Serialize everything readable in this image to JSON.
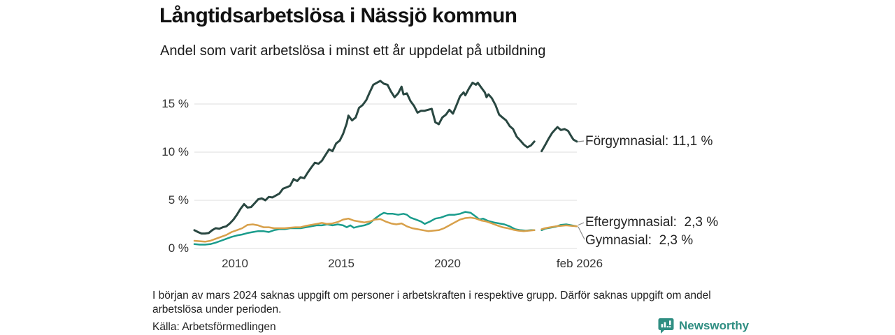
{
  "header": {
    "title": "Långtidsarbetslösa i Nässjö kommun",
    "subtitle": "Andel som varit arbetslösa i minst ett år uppdelat på utbildning"
  },
  "chart_data": {
    "type": "line",
    "title": "Långtidsarbetslösa i Nässjö kommun",
    "subtitle": "Andel som varit arbetslösa i minst ett år uppdelat på utbildning",
    "x_axis": {
      "range": [
        2008.08,
        2026.08
      ],
      "ticks": [
        {
          "label": "2010",
          "value": 2010
        },
        {
          "label": "2015",
          "value": 2015
        },
        {
          "label": "2020",
          "value": 2020
        },
        {
          "label": "feb 2026",
          "value": 2026.08
        }
      ]
    },
    "y_axis": {
      "unit": "%",
      "range": [
        0,
        18.5
      ],
      "grid": true,
      "ticks": [
        {
          "label": "0 %",
          "value": 0
        },
        {
          "label": "5 %",
          "value": 5
        },
        {
          "label": "10 %",
          "value": 10
        },
        {
          "label": "15 %",
          "value": 15
        }
      ]
    },
    "data_gap": {
      "from": 2024.17,
      "to": 2024.33,
      "reason": "mars 2024: uppgift saknas"
    },
    "series": [
      {
        "name": "Förgymnasial",
        "latest_value": "11,1 %",
        "label": "Förgymnasial: 11,1 %",
        "color": "#294741",
        "stroke_width": 3,
        "points": [
          [
            2008.08,
            1.9
          ],
          [
            2008.25,
            1.7
          ],
          [
            2008.42,
            1.55
          ],
          [
            2008.58,
            1.55
          ],
          [
            2008.75,
            1.6
          ],
          [
            2008.92,
            1.9
          ],
          [
            2009.08,
            2.1
          ],
          [
            2009.25,
            2.05
          ],
          [
            2009.42,
            2.2
          ],
          [
            2009.58,
            2.3
          ],
          [
            2009.75,
            2.6
          ],
          [
            2009.92,
            3.0
          ],
          [
            2010.08,
            3.5
          ],
          [
            2010.25,
            4.1
          ],
          [
            2010.42,
            4.6
          ],
          [
            2010.58,
            4.25
          ],
          [
            2010.75,
            4.3
          ],
          [
            2010.92,
            4.7
          ],
          [
            2011.08,
            5.1
          ],
          [
            2011.25,
            5.2
          ],
          [
            2011.42,
            5.0
          ],
          [
            2011.58,
            5.35
          ],
          [
            2011.75,
            5.3
          ],
          [
            2011.92,
            5.5
          ],
          [
            2012.08,
            5.7
          ],
          [
            2012.25,
            6.2
          ],
          [
            2012.42,
            6.35
          ],
          [
            2012.58,
            6.5
          ],
          [
            2012.75,
            7.2
          ],
          [
            2012.92,
            7.0
          ],
          [
            2013.08,
            7.4
          ],
          [
            2013.25,
            7.3
          ],
          [
            2013.42,
            7.9
          ],
          [
            2013.58,
            8.4
          ],
          [
            2013.75,
            8.9
          ],
          [
            2013.92,
            8.8
          ],
          [
            2014.08,
            9.1
          ],
          [
            2014.25,
            9.7
          ],
          [
            2014.42,
            10.3
          ],
          [
            2014.58,
            10.1
          ],
          [
            2014.75,
            10.9
          ],
          [
            2014.92,
            11.2
          ],
          [
            2015.08,
            11.9
          ],
          [
            2015.25,
            13.0
          ],
          [
            2015.33,
            13.8
          ],
          [
            2015.5,
            13.3
          ],
          [
            2015.67,
            13.6
          ],
          [
            2015.83,
            14.6
          ],
          [
            2016.0,
            14.9
          ],
          [
            2016.17,
            15.4
          ],
          [
            2016.33,
            16.2
          ],
          [
            2016.5,
            17.0
          ],
          [
            2016.67,
            17.2
          ],
          [
            2016.83,
            17.4
          ],
          [
            2017.0,
            17.1
          ],
          [
            2017.17,
            17.0
          ],
          [
            2017.33,
            16.3
          ],
          [
            2017.5,
            15.7
          ],
          [
            2017.67,
            16.1
          ],
          [
            2017.83,
            16.8
          ],
          [
            2017.92,
            16.0
          ],
          [
            2018.08,
            16.1
          ],
          [
            2018.25,
            15.3
          ],
          [
            2018.42,
            14.8
          ],
          [
            2018.58,
            14.1
          ],
          [
            2018.75,
            14.3
          ],
          [
            2018.92,
            14.3
          ],
          [
            2019.08,
            14.4
          ],
          [
            2019.25,
            14.5
          ],
          [
            2019.42,
            13.1
          ],
          [
            2019.58,
            12.9
          ],
          [
            2019.75,
            13.6
          ],
          [
            2019.92,
            13.9
          ],
          [
            2020.08,
            14.4
          ],
          [
            2020.25,
            14.0
          ],
          [
            2020.42,
            14.9
          ],
          [
            2020.58,
            15.8
          ],
          [
            2020.75,
            16.2
          ],
          [
            2020.83,
            15.9
          ],
          [
            2021.0,
            16.6
          ],
          [
            2021.17,
            17.2
          ],
          [
            2021.33,
            17.0
          ],
          [
            2021.42,
            17.2
          ],
          [
            2021.58,
            16.7
          ],
          [
            2021.75,
            16.2
          ],
          [
            2021.83,
            15.7
          ],
          [
            2021.92,
            16.0
          ],
          [
            2022.08,
            15.6
          ],
          [
            2022.25,
            14.9
          ],
          [
            2022.42,
            13.9
          ],
          [
            2022.58,
            13.6
          ],
          [
            2022.75,
            13.3
          ],
          [
            2022.92,
            12.7
          ],
          [
            2023.08,
            12.4
          ],
          [
            2023.25,
            11.6
          ],
          [
            2023.42,
            11.2
          ],
          [
            2023.58,
            10.8
          ],
          [
            2023.75,
            10.5
          ],
          [
            2023.92,
            10.7
          ],
          [
            2024.08,
            11.1
          ],
          null,
          [
            2024.42,
            10.1
          ],
          [
            2024.58,
            10.7
          ],
          [
            2024.75,
            11.4
          ],
          [
            2024.92,
            12.0
          ],
          [
            2025.08,
            12.4
          ],
          [
            2025.17,
            12.6
          ],
          [
            2025.33,
            12.3
          ],
          [
            2025.5,
            12.4
          ],
          [
            2025.67,
            12.2
          ],
          [
            2025.83,
            11.6
          ],
          [
            2025.92,
            11.3
          ],
          [
            2026.08,
            11.1
          ]
        ]
      },
      {
        "name": "Eftergymnasial",
        "latest_value": "2,3 %",
        "label": "Eftergymnasial:  2,3 %",
        "color": "#1a9c8c",
        "stroke_width": 2.5,
        "points": [
          [
            2008.08,
            0.45
          ],
          [
            2008.33,
            0.4
          ],
          [
            2008.58,
            0.4
          ],
          [
            2008.83,
            0.45
          ],
          [
            2009.08,
            0.6
          ],
          [
            2009.33,
            0.8
          ],
          [
            2009.58,
            1.0
          ],
          [
            2009.83,
            1.2
          ],
          [
            2010.08,
            1.35
          ],
          [
            2010.33,
            1.45
          ],
          [
            2010.58,
            1.6
          ],
          [
            2010.83,
            1.7
          ],
          [
            2011.08,
            1.8
          ],
          [
            2011.33,
            1.8
          ],
          [
            2011.58,
            1.7
          ],
          [
            2011.83,
            1.9
          ],
          [
            2012.08,
            2.0
          ],
          [
            2012.33,
            2.0
          ],
          [
            2012.58,
            2.1
          ],
          [
            2012.83,
            2.1
          ],
          [
            2013.08,
            2.1
          ],
          [
            2013.33,
            2.2
          ],
          [
            2013.58,
            2.3
          ],
          [
            2013.83,
            2.4
          ],
          [
            2014.08,
            2.4
          ],
          [
            2014.33,
            2.5
          ],
          [
            2014.58,
            2.4
          ],
          [
            2014.83,
            2.5
          ],
          [
            2015.08,
            2.4
          ],
          [
            2015.25,
            2.2
          ],
          [
            2015.42,
            2.4
          ],
          [
            2015.58,
            2.15
          ],
          [
            2015.83,
            2.3
          ],
          [
            2016.08,
            2.4
          ],
          [
            2016.33,
            2.6
          ],
          [
            2016.58,
            3.1
          ],
          [
            2016.83,
            3.5
          ],
          [
            2017.0,
            3.7
          ],
          [
            2017.17,
            3.6
          ],
          [
            2017.42,
            3.6
          ],
          [
            2017.67,
            3.5
          ],
          [
            2017.92,
            3.6
          ],
          [
            2018.08,
            3.5
          ],
          [
            2018.25,
            3.2
          ],
          [
            2018.5,
            3.0
          ],
          [
            2018.75,
            2.8
          ],
          [
            2018.92,
            2.55
          ],
          [
            2019.17,
            2.8
          ],
          [
            2019.42,
            3.1
          ],
          [
            2019.67,
            3.2
          ],
          [
            2019.92,
            3.4
          ],
          [
            2020.08,
            3.5
          ],
          [
            2020.33,
            3.5
          ],
          [
            2020.58,
            3.6
          ],
          [
            2020.83,
            3.8
          ],
          [
            2021.08,
            3.7
          ],
          [
            2021.33,
            3.3
          ],
          [
            2021.5,
            3.0
          ],
          [
            2021.67,
            3.1
          ],
          [
            2021.92,
            2.85
          ],
          [
            2022.17,
            2.7
          ],
          [
            2022.42,
            2.6
          ],
          [
            2022.67,
            2.5
          ],
          [
            2022.92,
            2.3
          ],
          [
            2023.17,
            2.0
          ],
          [
            2023.42,
            1.9
          ],
          [
            2023.67,
            1.85
          ],
          [
            2023.92,
            1.9
          ],
          [
            2024.08,
            1.9
          ],
          null,
          [
            2024.42,
            1.9
          ],
          [
            2024.58,
            2.05
          ],
          [
            2024.83,
            2.15
          ],
          [
            2025.08,
            2.25
          ],
          [
            2025.33,
            2.45
          ],
          [
            2025.58,
            2.5
          ],
          [
            2025.83,
            2.4
          ],
          [
            2026.08,
            2.3
          ]
        ]
      },
      {
        "name": "Gymnasial",
        "latest_value": "2,3 %",
        "label": "Gymnasial:  2,3 %",
        "color": "#d8a04a",
        "stroke_width": 2.5,
        "points": [
          [
            2008.08,
            0.8
          ],
          [
            2008.33,
            0.75
          ],
          [
            2008.58,
            0.7
          ],
          [
            2008.83,
            0.8
          ],
          [
            2009.08,
            1.0
          ],
          [
            2009.33,
            1.2
          ],
          [
            2009.58,
            1.4
          ],
          [
            2009.83,
            1.7
          ],
          [
            2010.08,
            1.9
          ],
          [
            2010.33,
            2.1
          ],
          [
            2010.58,
            2.45
          ],
          [
            2010.83,
            2.5
          ],
          [
            2011.08,
            2.4
          ],
          [
            2011.33,
            2.2
          ],
          [
            2011.58,
            2.2
          ],
          [
            2011.83,
            2.1
          ],
          [
            2012.08,
            2.1
          ],
          [
            2012.33,
            2.1
          ],
          [
            2012.58,
            2.15
          ],
          [
            2012.83,
            2.2
          ],
          [
            2013.08,
            2.2
          ],
          [
            2013.33,
            2.35
          ],
          [
            2013.58,
            2.45
          ],
          [
            2013.83,
            2.55
          ],
          [
            2014.08,
            2.65
          ],
          [
            2014.33,
            2.55
          ],
          [
            2014.58,
            2.6
          ],
          [
            2014.83,
            2.75
          ],
          [
            2015.08,
            3.0
          ],
          [
            2015.33,
            3.1
          ],
          [
            2015.58,
            2.9
          ],
          [
            2015.83,
            2.8
          ],
          [
            2016.08,
            2.7
          ],
          [
            2016.33,
            2.8
          ],
          [
            2016.58,
            3.0
          ],
          [
            2016.83,
            3.05
          ],
          [
            2017.08,
            2.8
          ],
          [
            2017.33,
            2.6
          ],
          [
            2017.58,
            2.5
          ],
          [
            2017.83,
            2.6
          ],
          [
            2018.08,
            2.3
          ],
          [
            2018.33,
            2.1
          ],
          [
            2018.58,
            2.0
          ],
          [
            2018.83,
            1.9
          ],
          [
            2019.08,
            1.8
          ],
          [
            2019.33,
            1.85
          ],
          [
            2019.58,
            1.9
          ],
          [
            2019.83,
            2.1
          ],
          [
            2020.08,
            2.4
          ],
          [
            2020.33,
            2.7
          ],
          [
            2020.58,
            3.0
          ],
          [
            2020.83,
            3.15
          ],
          [
            2021.08,
            3.2
          ],
          [
            2021.33,
            3.1
          ],
          [
            2021.58,
            2.9
          ],
          [
            2021.83,
            2.8
          ],
          [
            2022.08,
            2.6
          ],
          [
            2022.33,
            2.4
          ],
          [
            2022.58,
            2.2
          ],
          [
            2022.83,
            2.1
          ],
          [
            2023.08,
            1.95
          ],
          [
            2023.33,
            1.85
          ],
          [
            2023.58,
            1.8
          ],
          [
            2023.83,
            1.85
          ],
          [
            2024.08,
            1.9
          ],
          null,
          [
            2024.42,
            2.0
          ],
          [
            2024.58,
            2.1
          ],
          [
            2024.83,
            2.2
          ],
          [
            2025.08,
            2.3
          ],
          [
            2025.33,
            2.35
          ],
          [
            2025.58,
            2.4
          ],
          [
            2025.83,
            2.35
          ],
          [
            2026.08,
            2.3
          ]
        ]
      }
    ],
    "legend_position": "right-inline-labels",
    "grid_color": "#dcdcdc"
  },
  "footnote": "I början av mars 2024 saknas uppgift om personer i arbetskraften i respektive grupp. Därför saknas uppgift om andel arbetslösa under perioden.",
  "source": "Källa: Arbetsförmedlingen",
  "branding": {
    "name": "Newsworthy",
    "color": "#2f8e82"
  }
}
